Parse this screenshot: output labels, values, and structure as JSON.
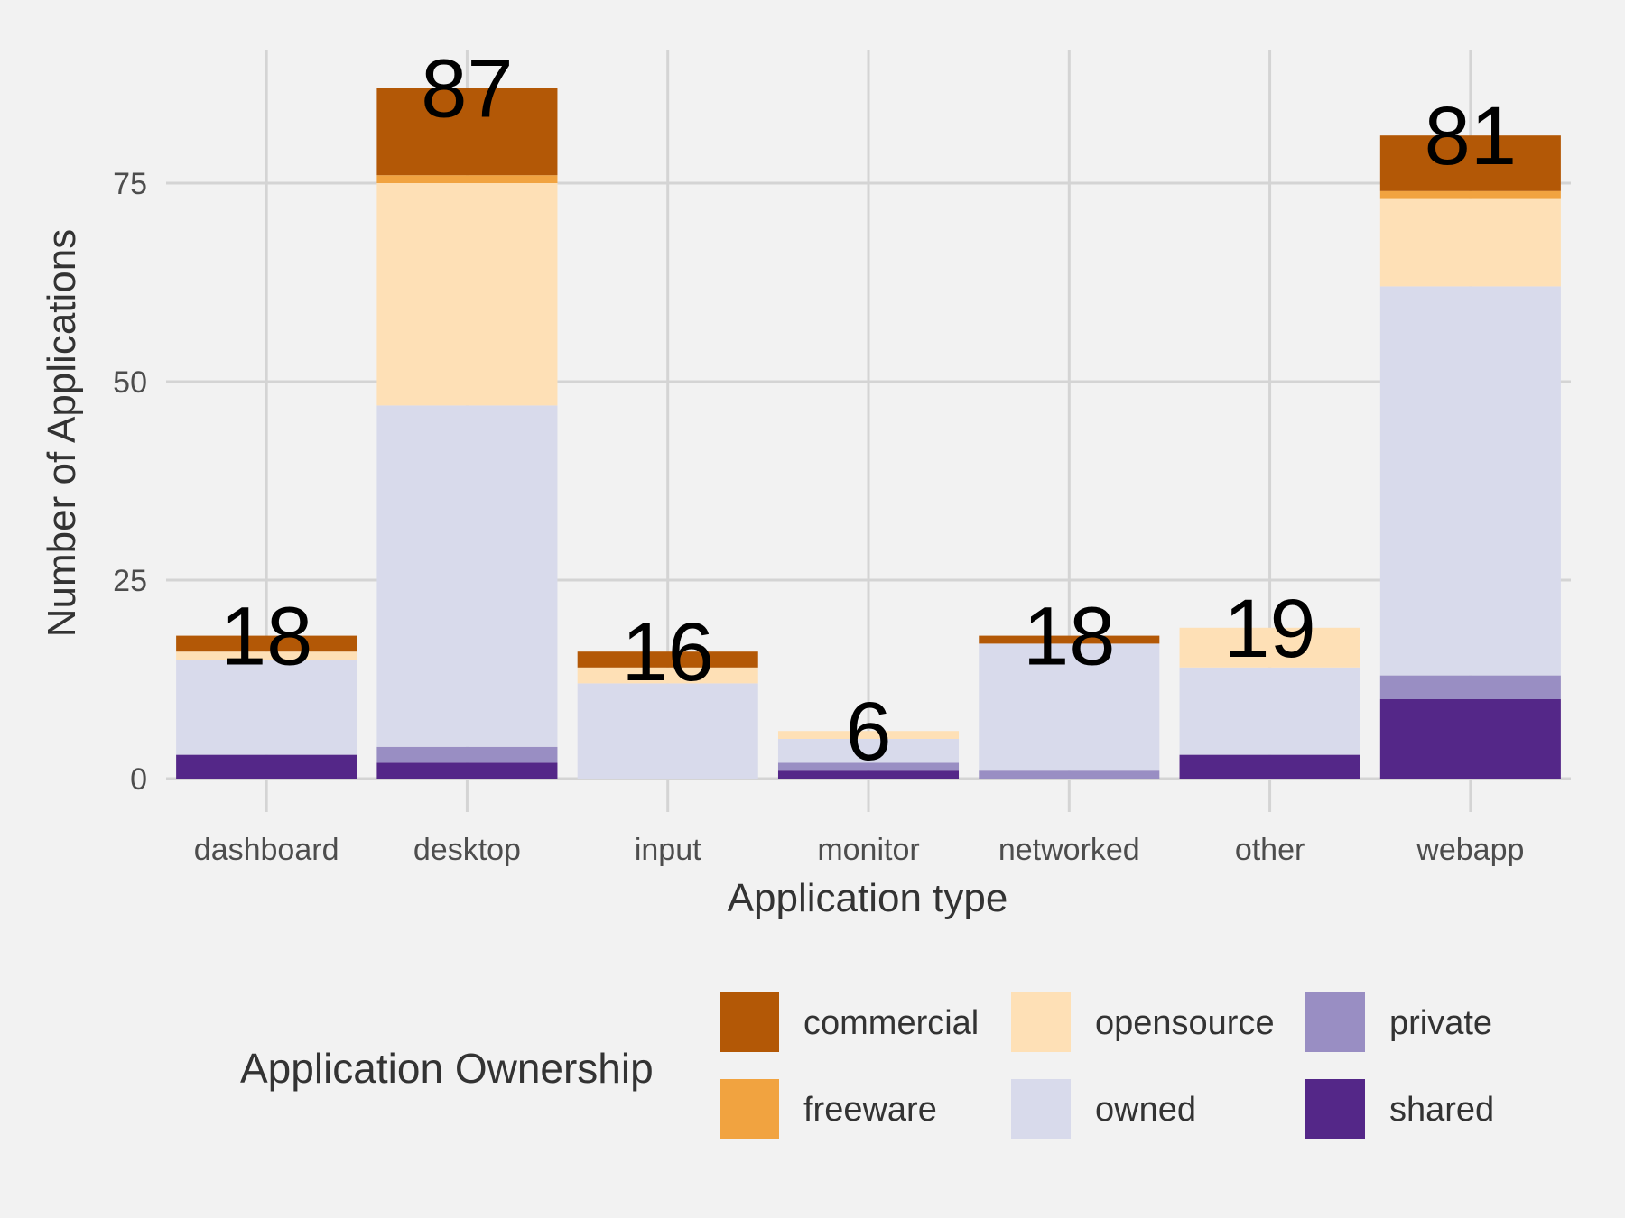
{
  "chart_data": {
    "type": "bar",
    "stacked": true,
    "title": "",
    "xlabel": "Application type",
    "ylabel": "Number of Applications",
    "categories": [
      "dashboard",
      "desktop",
      "input",
      "monitor",
      "networked",
      "other",
      "webapp"
    ],
    "ylim": [
      0,
      90
    ],
    "yticks": [
      0,
      25,
      50,
      75
    ],
    "grid": true,
    "legend": {
      "title": "Application Ownership",
      "placement": "bottom",
      "entries": [
        "commercial",
        "freeware",
        "opensource",
        "owned",
        "private",
        "shared"
      ]
    },
    "totals": [
      18,
      87,
      16,
      6,
      18,
      19,
      81
    ],
    "series": [
      {
        "name": "shared",
        "color": "#542788",
        "values": [
          3,
          2,
          0,
          1,
          0,
          3,
          10
        ]
      },
      {
        "name": "private",
        "color": "#998ec3",
        "values": [
          0,
          2,
          0,
          1,
          1,
          0,
          3
        ]
      },
      {
        "name": "owned",
        "color": "#d8daeb",
        "values": [
          12,
          43,
          12,
          3,
          16,
          11,
          49
        ]
      },
      {
        "name": "opensource",
        "color": "#fee0b6",
        "values": [
          1,
          28,
          2,
          1,
          0,
          5,
          11
        ]
      },
      {
        "name": "freeware",
        "color": "#f1a340",
        "values": [
          0,
          1,
          0,
          0,
          0,
          0,
          1
        ]
      },
      {
        "name": "commercial",
        "color": "#b35806",
        "values": [
          2,
          11,
          2,
          0,
          1,
          0,
          7
        ]
      }
    ]
  }
}
